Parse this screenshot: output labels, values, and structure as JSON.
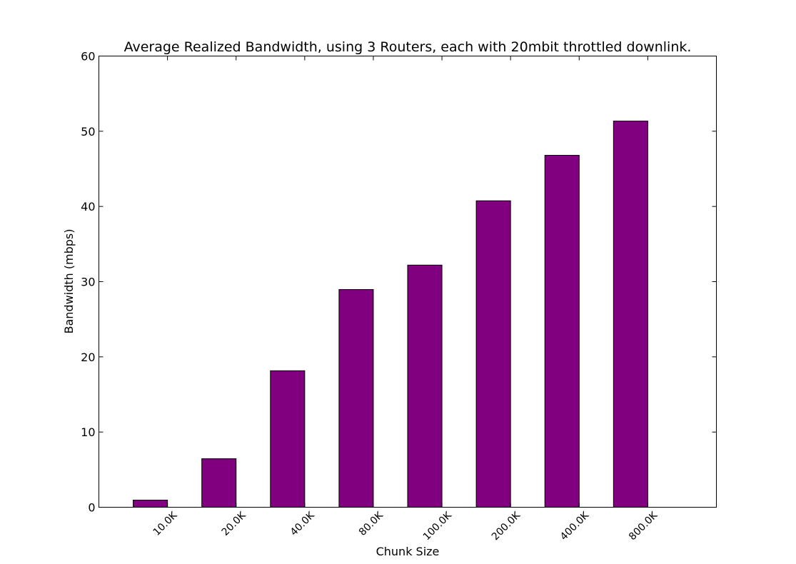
{
  "chart_data": {
    "type": "bar",
    "title": "Average Realized Bandwidth, using 3 Routers, each with 20mbit throttled downlink.",
    "xlabel": "Chunk Size",
    "ylabel": "Bandwidth (mbps)",
    "categories": [
      "10.0K",
      "20.0K",
      "40.0K",
      "80.0K",
      "100.0K",
      "200.0K",
      "400.0K",
      "800.0K"
    ],
    "values": [
      0.95,
      6.45,
      18.15,
      28.95,
      32.2,
      40.75,
      46.8,
      51.35
    ],
    "ylim": [
      0,
      60
    ],
    "yticks": [
      0,
      10,
      20,
      30,
      40,
      50,
      60
    ],
    "grid": false,
    "legend": "none",
    "bar_color": "#800080",
    "bar_edge_color": "#000000"
  }
}
